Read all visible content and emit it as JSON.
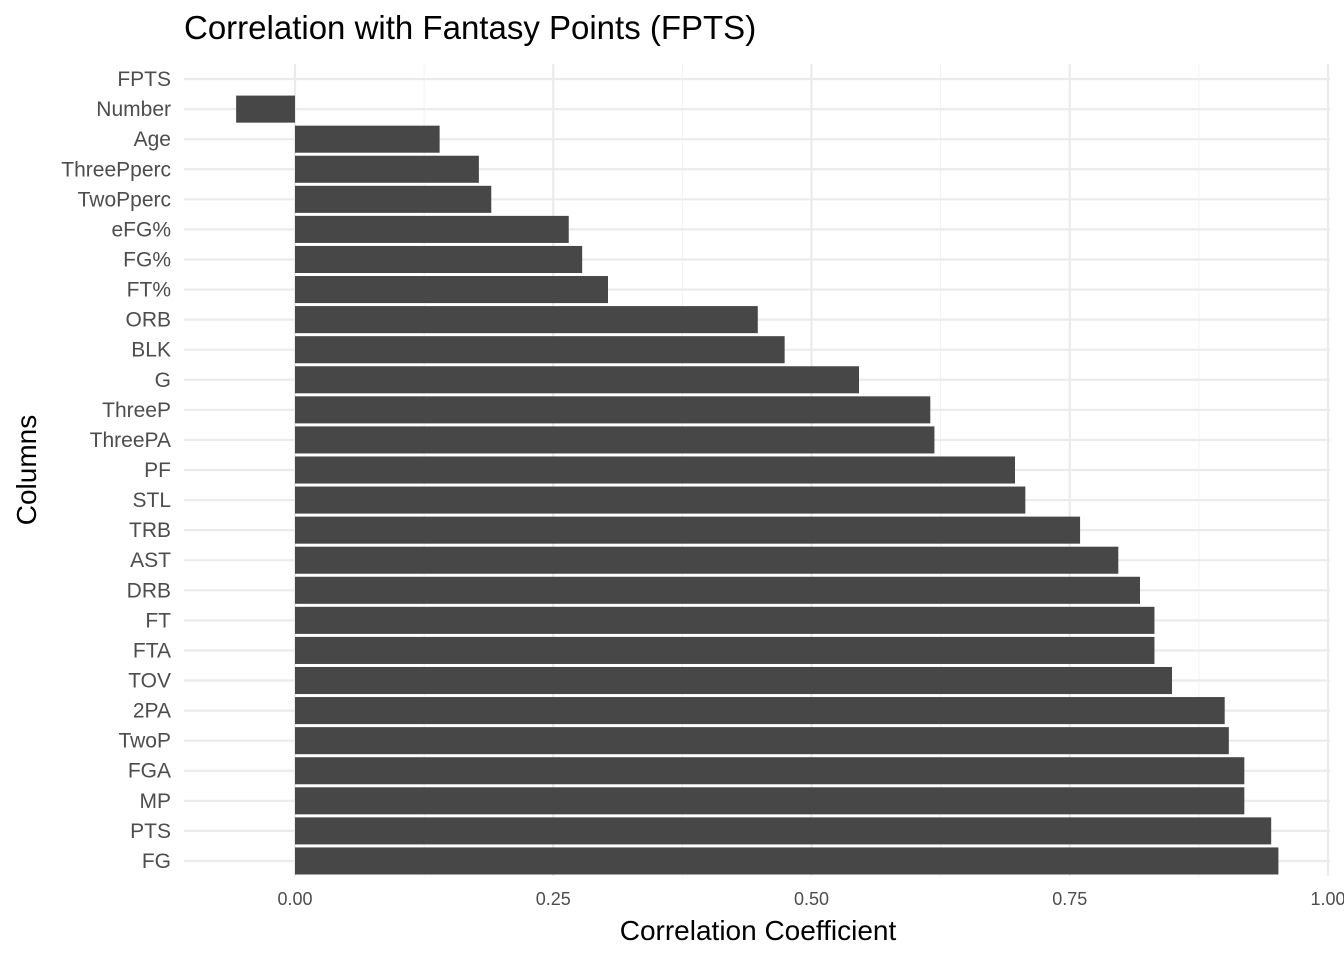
{
  "chart_data": {
    "type": "bar",
    "orientation": "horizontal",
    "title": "Correlation with Fantasy Points (FPTS)",
    "xlabel": "Correlation Coefficient",
    "ylabel": "Columns",
    "xlim": [
      -0.11,
      1.0
    ],
    "xticks": [
      0.0,
      0.25,
      0.5,
      0.75,
      1.0
    ],
    "xtick_labels": [
      "0.00",
      "0.25",
      "0.50",
      "0.75",
      "1.00"
    ],
    "grid": true,
    "bar_color": "#474747",
    "categories": [
      "FPTS",
      "Number",
      "Age",
      "ThreePperc",
      "TwoPperc",
      "eFG%",
      "FG%",
      "FT%",
      "ORB",
      "BLK",
      "G",
      "ThreeP",
      "ThreePA",
      "PF",
      "STL",
      "TRB",
      "AST",
      "DRB",
      "FT",
      "FTA",
      "TOV",
      "2PA",
      "TwoP",
      "FGA",
      "MP",
      "PTS",
      "FG"
    ],
    "values": [
      0.0,
      -0.057,
      0.14,
      0.178,
      0.19,
      0.265,
      0.278,
      0.303,
      0.448,
      0.474,
      0.546,
      0.615,
      0.619,
      0.697,
      0.707,
      0.76,
      0.797,
      0.818,
      0.832,
      0.832,
      0.849,
      0.9,
      0.904,
      0.919,
      0.919,
      0.945,
      0.952
    ]
  }
}
